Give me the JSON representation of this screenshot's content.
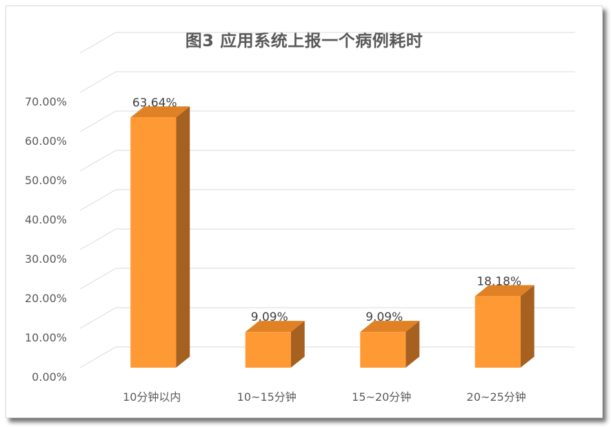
{
  "chart_data": {
    "type": "bar",
    "title": "图3 应用系统上报一个病例耗时",
    "categories": [
      "10分钟以内",
      "10~15分钟",
      "15~20分钟",
      "20~25分钟"
    ],
    "values": [
      63.64,
      9.09,
      9.09,
      18.18
    ],
    "data_labels": [
      "63.64%",
      "9.09%",
      "9.09%",
      "18.18%"
    ],
    "yticks": [
      "0.00%",
      "10.00%",
      "20.00%",
      "30.00%",
      "40.00%",
      "50.00%",
      "60.00%",
      "70.00%"
    ],
    "ylim": [
      0,
      70
    ],
    "grid": true,
    "style_3d": true,
    "colors": {
      "bar_front": "#ff9933",
      "bar_top": "#e08126",
      "bar_side": "#a6601f",
      "grid": "#d9d9d9"
    }
  }
}
